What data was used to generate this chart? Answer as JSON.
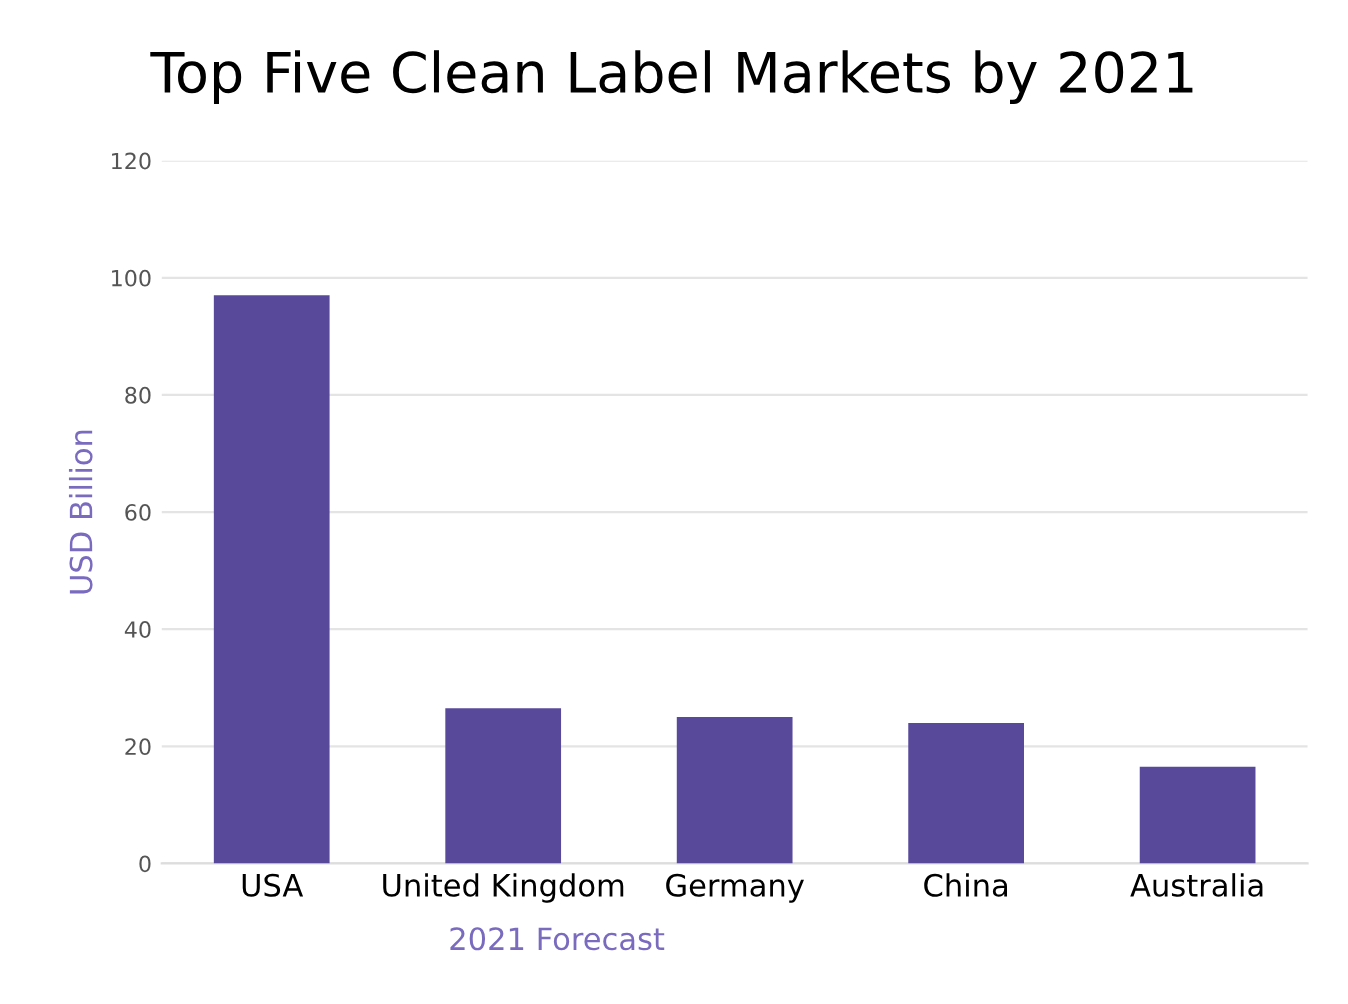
{
  "chart_data": {
    "type": "bar",
    "title": "Top Five Clean Label Markets by 2021",
    "xlabel": "2021 Forecast",
    "ylabel": "USD Billion",
    "categories": [
      "USA",
      "United Kingdom",
      "Germany",
      "China",
      "Australia"
    ],
    "values": [
      97,
      26.5,
      25,
      24,
      16.5
    ],
    "color": "#58499a",
    "ylim": [
      0,
      120
    ],
    "yticks": [
      0,
      20,
      40,
      60,
      80,
      100,
      120
    ],
    "grid": "y"
  }
}
